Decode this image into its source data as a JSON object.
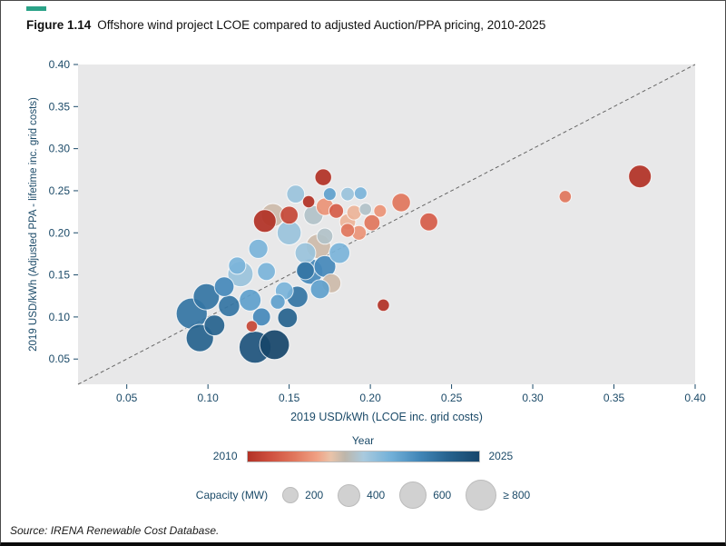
{
  "figure": {
    "label": "Figure 1.14",
    "title": "Offshore wind project LCOE compared to adjusted Auction/PPA pricing, 2010-2025",
    "source": "Source: IRENA Renewable Cost Database."
  },
  "colors": {
    "accent_green": "#2ba388",
    "axis_text": "#1b4a68",
    "plot_bg": "#e8e8e9",
    "identity_line": "#666666",
    "year_scale": [
      [
        0.0,
        "#b23226"
      ],
      [
        0.1,
        "#cf5140"
      ],
      [
        0.2,
        "#e0765c"
      ],
      [
        0.3,
        "#f0a184"
      ],
      [
        0.36,
        "#e9c3a9"
      ],
      [
        0.42,
        "#bdb6aa"
      ],
      [
        0.5,
        "#a9cade"
      ],
      [
        0.62,
        "#72b0d8"
      ],
      [
        0.74,
        "#4387b8"
      ],
      [
        0.86,
        "#286490"
      ],
      [
        1.0,
        "#17466b"
      ]
    ]
  },
  "chart_data": {
    "type": "scatter",
    "title": "Offshore wind project LCOE compared to adjusted Auction/PPA pricing, 2010-2025",
    "xlabel": "2019 USD/kWh (LCOE inc. grid costs)",
    "ylabel": "2019 USD/kWh (Adjusted PPA - lifetime inc. grid costs)",
    "xlim": [
      0.02,
      0.4
    ],
    "ylim": [
      0.02,
      0.4
    ],
    "xticks": [
      0.05,
      0.1,
      0.15,
      0.2,
      0.25,
      0.3,
      0.35,
      0.4
    ],
    "yticks": [
      0.05,
      0.1,
      0.15,
      0.2,
      0.25,
      0.3,
      0.35,
      0.4
    ],
    "grid": false,
    "identity_line": true,
    "legend": {
      "year": {
        "label": "Year",
        "min": "2010",
        "max": "2025"
      },
      "capacity": {
        "label": "Capacity (MW)",
        "labels": [
          "200",
          "400",
          "600",
          "≥ 800"
        ],
        "sizes": [
          200,
          400,
          600,
          800
        ]
      }
    },
    "points": [
      {
        "x": 0.171,
        "y": 0.266,
        "year": 2010,
        "mw": 260
      },
      {
        "x": 0.135,
        "y": 0.214,
        "year": 2010,
        "mw": 480
      },
      {
        "x": 0.15,
        "y": 0.221,
        "year": 2011,
        "mw": 300
      },
      {
        "x": 0.162,
        "y": 0.237,
        "year": 2010,
        "mw": 140
      },
      {
        "x": 0.366,
        "y": 0.267,
        "year": 2010,
        "mw": 480
      },
      {
        "x": 0.32,
        "y": 0.243,
        "year": 2013,
        "mw": 140
      },
      {
        "x": 0.208,
        "y": 0.114,
        "year": 2010,
        "mw": 140
      },
      {
        "x": 0.127,
        "y": 0.089,
        "year": 2011,
        "mw": 120
      },
      {
        "x": 0.219,
        "y": 0.236,
        "year": 2013,
        "mw": 320
      },
      {
        "x": 0.236,
        "y": 0.213,
        "year": 2012,
        "mw": 300
      },
      {
        "x": 0.201,
        "y": 0.212,
        "year": 2013,
        "mw": 240
      },
      {
        "x": 0.186,
        "y": 0.203,
        "year": 2013,
        "mw": 180
      },
      {
        "x": 0.206,
        "y": 0.226,
        "year": 2014,
        "mw": 150
      },
      {
        "x": 0.179,
        "y": 0.226,
        "year": 2012,
        "mw": 200
      },
      {
        "x": 0.172,
        "y": 0.231,
        "year": 2014,
        "mw": 280
      },
      {
        "x": 0.193,
        "y": 0.2,
        "year": 2014,
        "mw": 200
      },
      {
        "x": 0.14,
        "y": 0.221,
        "year": 2016,
        "mw": 500
      },
      {
        "x": 0.168,
        "y": 0.184,
        "year": 2016,
        "mw": 560
      },
      {
        "x": 0.176,
        "y": 0.14,
        "year": 2016,
        "mw": 340
      },
      {
        "x": 0.19,
        "y": 0.224,
        "year": 2015,
        "mw": 200
      },
      {
        "x": 0.186,
        "y": 0.213,
        "year": 2015,
        "mw": 240
      },
      {
        "x": 0.154,
        "y": 0.246,
        "year": 2018,
        "mw": 300
      },
      {
        "x": 0.186,
        "y": 0.246,
        "year": 2018,
        "mw": 170
      },
      {
        "x": 0.165,
        "y": 0.221,
        "year": 2017,
        "mw": 340
      },
      {
        "x": 0.15,
        "y": 0.2,
        "year": 2018,
        "mw": 540
      },
      {
        "x": 0.16,
        "y": 0.176,
        "year": 2018,
        "mw": 400
      },
      {
        "x": 0.131,
        "y": 0.181,
        "year": 2019,
        "mw": 340
      },
      {
        "x": 0.12,
        "y": 0.151,
        "year": 2018,
        "mw": 600
      },
      {
        "x": 0.136,
        "y": 0.154,
        "year": 2019,
        "mw": 300
      },
      {
        "x": 0.147,
        "y": 0.131,
        "year": 2019,
        "mw": 300
      },
      {
        "x": 0.172,
        "y": 0.196,
        "year": 2017,
        "mw": 240
      },
      {
        "x": 0.194,
        "y": 0.247,
        "year": 2019,
        "mw": 150
      },
      {
        "x": 0.197,
        "y": 0.228,
        "year": 2017,
        "mw": 140
      },
      {
        "x": 0.118,
        "y": 0.161,
        "year": 2019,
        "mw": 280
      },
      {
        "x": 0.09,
        "y": 0.104,
        "year": 2022,
        "mw": 900
      },
      {
        "x": 0.095,
        "y": 0.075,
        "year": 2023,
        "mw": 700
      },
      {
        "x": 0.099,
        "y": 0.124,
        "year": 2022,
        "mw": 640
      },
      {
        "x": 0.104,
        "y": 0.09,
        "year": 2023,
        "mw": 400
      },
      {
        "x": 0.11,
        "y": 0.136,
        "year": 2021,
        "mw": 360
      },
      {
        "x": 0.113,
        "y": 0.113,
        "year": 2022,
        "mw": 420
      },
      {
        "x": 0.129,
        "y": 0.064,
        "year": 2024,
        "mw": 950
      },
      {
        "x": 0.141,
        "y": 0.067,
        "year": 2025,
        "mw": 820
      },
      {
        "x": 0.149,
        "y": 0.099,
        "year": 2023,
        "mw": 360
      },
      {
        "x": 0.155,
        "y": 0.124,
        "year": 2022,
        "mw": 420
      },
      {
        "x": 0.163,
        "y": 0.154,
        "year": 2021,
        "mw": 600
      },
      {
        "x": 0.172,
        "y": 0.16,
        "year": 2021,
        "mw": 440
      },
      {
        "x": 0.169,
        "y": 0.133,
        "year": 2020,
        "mw": 340
      },
      {
        "x": 0.126,
        "y": 0.12,
        "year": 2020,
        "mw": 440
      },
      {
        "x": 0.143,
        "y": 0.118,
        "year": 2020,
        "mw": 200
      },
      {
        "x": 0.175,
        "y": 0.246,
        "year": 2020,
        "mw": 150
      },
      {
        "x": 0.181,
        "y": 0.176,
        "year": 2019,
        "mw": 400
      },
      {
        "x": 0.16,
        "y": 0.155,
        "year": 2022,
        "mw": 300
      },
      {
        "x": 0.133,
        "y": 0.1,
        "year": 2021,
        "mw": 300
      }
    ]
  }
}
